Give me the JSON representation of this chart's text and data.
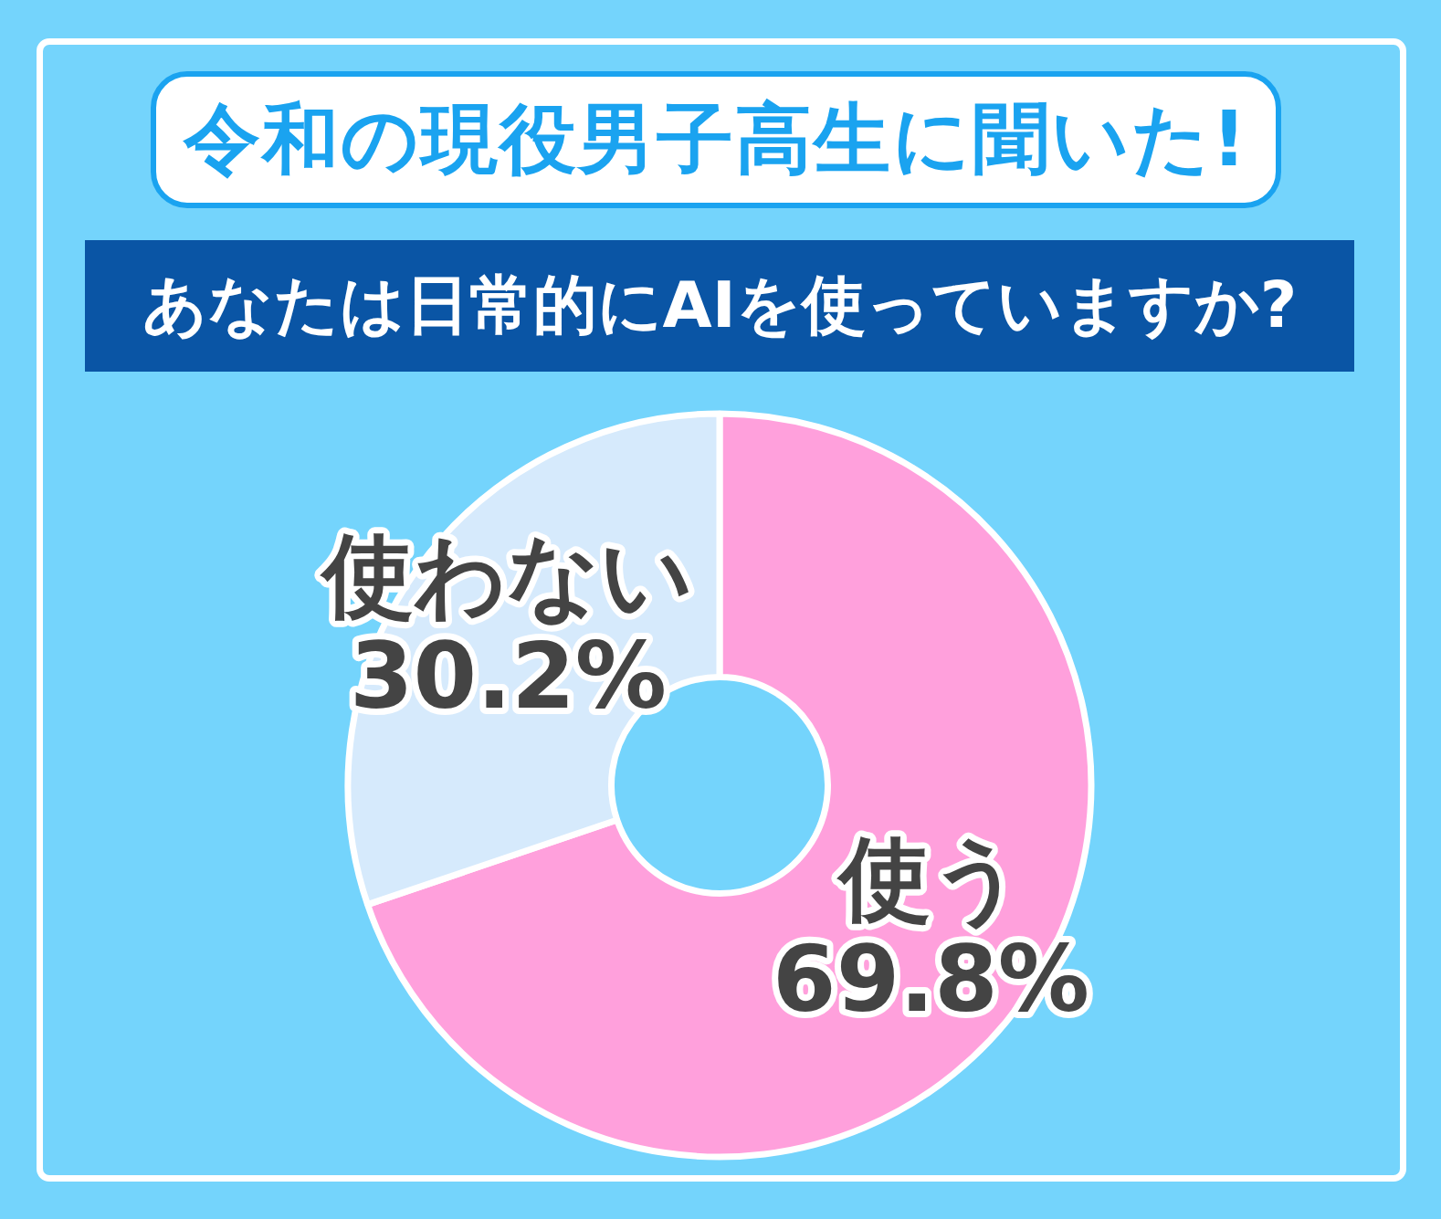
{
  "chart_data": {
    "type": "donut",
    "title": "令和の現役男子高生に聞いた!",
    "subtitle": "あなたは日常的にAIを使っていますか?",
    "categories": [
      "使う",
      "使わない"
    ],
    "values": [
      69.8,
      30.2
    ],
    "colors": [
      "#ffa0dc",
      "#d6eafc"
    ],
    "value_labels": [
      "69.8%",
      "30.2%"
    ],
    "legend": false
  }
}
